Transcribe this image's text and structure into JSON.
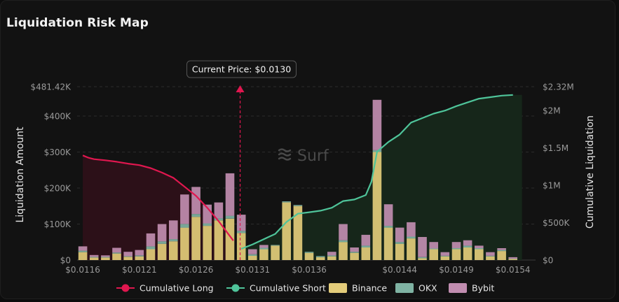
{
  "title": "Liquidation Risk Map",
  "watermark": "Surf",
  "colors": {
    "long": "#e0174f",
    "short": "#4fc49a",
    "binance": "#e3cc7a",
    "okx": "#7fb3a3",
    "bybit": "#c18db0",
    "long_fill": "#2c1018",
    "short_fill": "#16261a"
  },
  "chart_data": {
    "type": "bar",
    "current_price_label": "Current Price: $0.0130",
    "current_price": 0.01299,
    "x_ticks": [
      0.0116,
      0.0121,
      0.0126,
      0.0131,
      0.0136,
      0.0144,
      0.0149,
      0.0154
    ],
    "x_tick_labels": [
      "$0.0116",
      "$0.0121",
      "$0.0126",
      "$0.0131",
      "$0.0136",
      "$0.0144",
      "$0.0149",
      "$0.0154"
    ],
    "ylabel": "Liquidation Amount",
    "ylim": [
      0,
      481420
    ],
    "y_ticks": [
      0,
      100000,
      200000,
      300000,
      400000,
      481420
    ],
    "y_tick_labels": [
      "$0",
      "$100K",
      "$200K",
      "$300K",
      "$400K",
      "$481.42K"
    ],
    "y2label": "Cumulative Liquidation",
    "y2lim": [
      0,
      2320000
    ],
    "y2_ticks": [
      0,
      500000,
      1000000,
      1500000,
      2000000,
      2320000
    ],
    "y2_tick_labels": [
      "$0",
      "$500K",
      "$1M",
      "$1.5M",
      "$2M",
      "$2.32M"
    ],
    "grid": true,
    "legend_position": "bottom",
    "legend": [
      "Cumulative Long",
      "Cumulative Short",
      "Binance",
      "OKX",
      "Bybit"
    ],
    "price_step": 0.0001,
    "bars": [
      {
        "price": 0.0116,
        "binance": 22000,
        "okx": 4000,
        "bybit": 12000
      },
      {
        "price": 0.0117,
        "binance": 7000,
        "okx": 2000,
        "bybit": 5000
      },
      {
        "price": 0.0118,
        "binance": 7000,
        "okx": 2000,
        "bybit": 4000
      },
      {
        "price": 0.0119,
        "binance": 18000,
        "okx": 3000,
        "bybit": 13000
      },
      {
        "price": 0.012,
        "binance": 9000,
        "okx": 2000,
        "bybit": 12000
      },
      {
        "price": 0.0121,
        "binance": 10000,
        "okx": 3000,
        "bybit": 15000
      },
      {
        "price": 0.0122,
        "binance": 30000,
        "okx": 8000,
        "bybit": 36000
      },
      {
        "price": 0.0123,
        "binance": 45000,
        "okx": 7000,
        "bybit": 48000
      },
      {
        "price": 0.0124,
        "binance": 52000,
        "okx": 6000,
        "bybit": 52000
      },
      {
        "price": 0.0125,
        "binance": 90000,
        "okx": 10000,
        "bybit": 82000
      },
      {
        "price": 0.0126,
        "binance": 120000,
        "okx": 8000,
        "bybit": 75000
      },
      {
        "price": 0.0127,
        "binance": 95000,
        "okx": 7000,
        "bybit": 52000
      },
      {
        "price": 0.0128,
        "binance": 110000,
        "okx": 6000,
        "bybit": 44000
      },
      {
        "price": 0.0129,
        "binance": 115000,
        "okx": 8000,
        "bybit": 118000
      },
      {
        "price": 0.013,
        "binance": 75000,
        "okx": 6000,
        "bybit": 45000
      },
      {
        "price": 0.0131,
        "binance": 12000,
        "okx": 4000,
        "bybit": 14000
      },
      {
        "price": 0.0132,
        "binance": 30000,
        "okx": 4000,
        "bybit": 8000
      },
      {
        "price": 0.0133,
        "binance": 40000,
        "okx": 2000,
        "bybit": 0
      },
      {
        "price": 0.0134,
        "binance": 160000,
        "okx": 3000,
        "bybit": 0
      },
      {
        "price": 0.0135,
        "binance": 150000,
        "okx": 3000,
        "bybit": 0
      },
      {
        "price": 0.0136,
        "binance": 20000,
        "okx": 3000,
        "bybit": 0
      },
      {
        "price": 0.0137,
        "binance": 8000,
        "okx": 3000,
        "bybit": 0
      },
      {
        "price": 0.0138,
        "binance": 10000,
        "okx": 3000,
        "bybit": 10000
      },
      {
        "price": 0.0139,
        "binance": 50000,
        "okx": 5000,
        "bybit": 45000
      },
      {
        "price": 0.014,
        "binance": 20000,
        "okx": 3000,
        "bybit": 12000
      },
      {
        "price": 0.0141,
        "binance": 35000,
        "okx": 5000,
        "bybit": 30000
      },
      {
        "price": 0.0142,
        "binance": 300000,
        "okx": 5000,
        "bybit": 140000
      },
      {
        "price": 0.0143,
        "binance": 90000,
        "okx": 5000,
        "bybit": 60000
      },
      {
        "price": 0.0144,
        "binance": 45000,
        "okx": 5000,
        "bybit": 40000
      },
      {
        "price": 0.0145,
        "binance": 60000,
        "okx": 5000,
        "bybit": 40000
      },
      {
        "price": 0.0146,
        "binance": 5000,
        "okx": 3000,
        "bybit": 56000
      },
      {
        "price": 0.0147,
        "binance": 30000,
        "okx": 2000,
        "bybit": 18000
      },
      {
        "price": 0.0148,
        "binance": 10000,
        "okx": 2000,
        "bybit": 10000
      },
      {
        "price": 0.0149,
        "binance": 30000,
        "okx": 3000,
        "bybit": 17000
      },
      {
        "price": 0.015,
        "binance": 35000,
        "okx": 5000,
        "bybit": 15000
      },
      {
        "price": 0.0151,
        "binance": 30000,
        "okx": 3000,
        "bybit": 7000
      },
      {
        "price": 0.0152,
        "binance": 10000,
        "okx": 2000,
        "bybit": 10000
      },
      {
        "price": 0.0153,
        "binance": 25000,
        "okx": 3000,
        "bybit": 5000
      },
      {
        "price": 0.0154,
        "binance": 3000,
        "okx": 1000,
        "bybit": 4000
      }
    ],
    "cumulative_long": [
      [
        0.0116,
        1400000
      ],
      [
        0.01165,
        1370000
      ],
      [
        0.0117,
        1350000
      ],
      [
        0.0118,
        1335000
      ],
      [
        0.0119,
        1315000
      ],
      [
        0.012,
        1290000
      ],
      [
        0.0121,
        1270000
      ],
      [
        0.0122,
        1230000
      ],
      [
        0.0123,
        1170000
      ],
      [
        0.0124,
        1100000
      ],
      [
        0.0125,
        980000
      ],
      [
        0.0126,
        860000
      ],
      [
        0.0127,
        700000
      ],
      [
        0.0128,
        520000
      ],
      [
        0.01286,
        400000
      ],
      [
        0.01293,
        260000
      ]
    ],
    "cumulative_short": [
      [
        0.013,
        150000
      ],
      [
        0.0131,
        210000
      ],
      [
        0.0132,
        280000
      ],
      [
        0.0133,
        350000
      ],
      [
        0.0134,
        510000
      ],
      [
        0.0135,
        620000
      ],
      [
        0.0136,
        640000
      ],
      [
        0.0137,
        660000
      ],
      [
        0.0138,
        700000
      ],
      [
        0.0139,
        790000
      ],
      [
        0.014,
        810000
      ],
      [
        0.0141,
        870000
      ],
      [
        0.01415,
        1050000
      ],
      [
        0.0142,
        1450000
      ],
      [
        0.0143,
        1580000
      ],
      [
        0.0144,
        1680000
      ],
      [
        0.0145,
        1840000
      ],
      [
        0.0146,
        1900000
      ],
      [
        0.0147,
        1960000
      ],
      [
        0.0148,
        2000000
      ],
      [
        0.0149,
        2060000
      ],
      [
        0.015,
        2110000
      ],
      [
        0.0151,
        2160000
      ],
      [
        0.0152,
        2180000
      ],
      [
        0.0153,
        2200000
      ],
      [
        0.0154,
        2210000
      ]
    ]
  }
}
